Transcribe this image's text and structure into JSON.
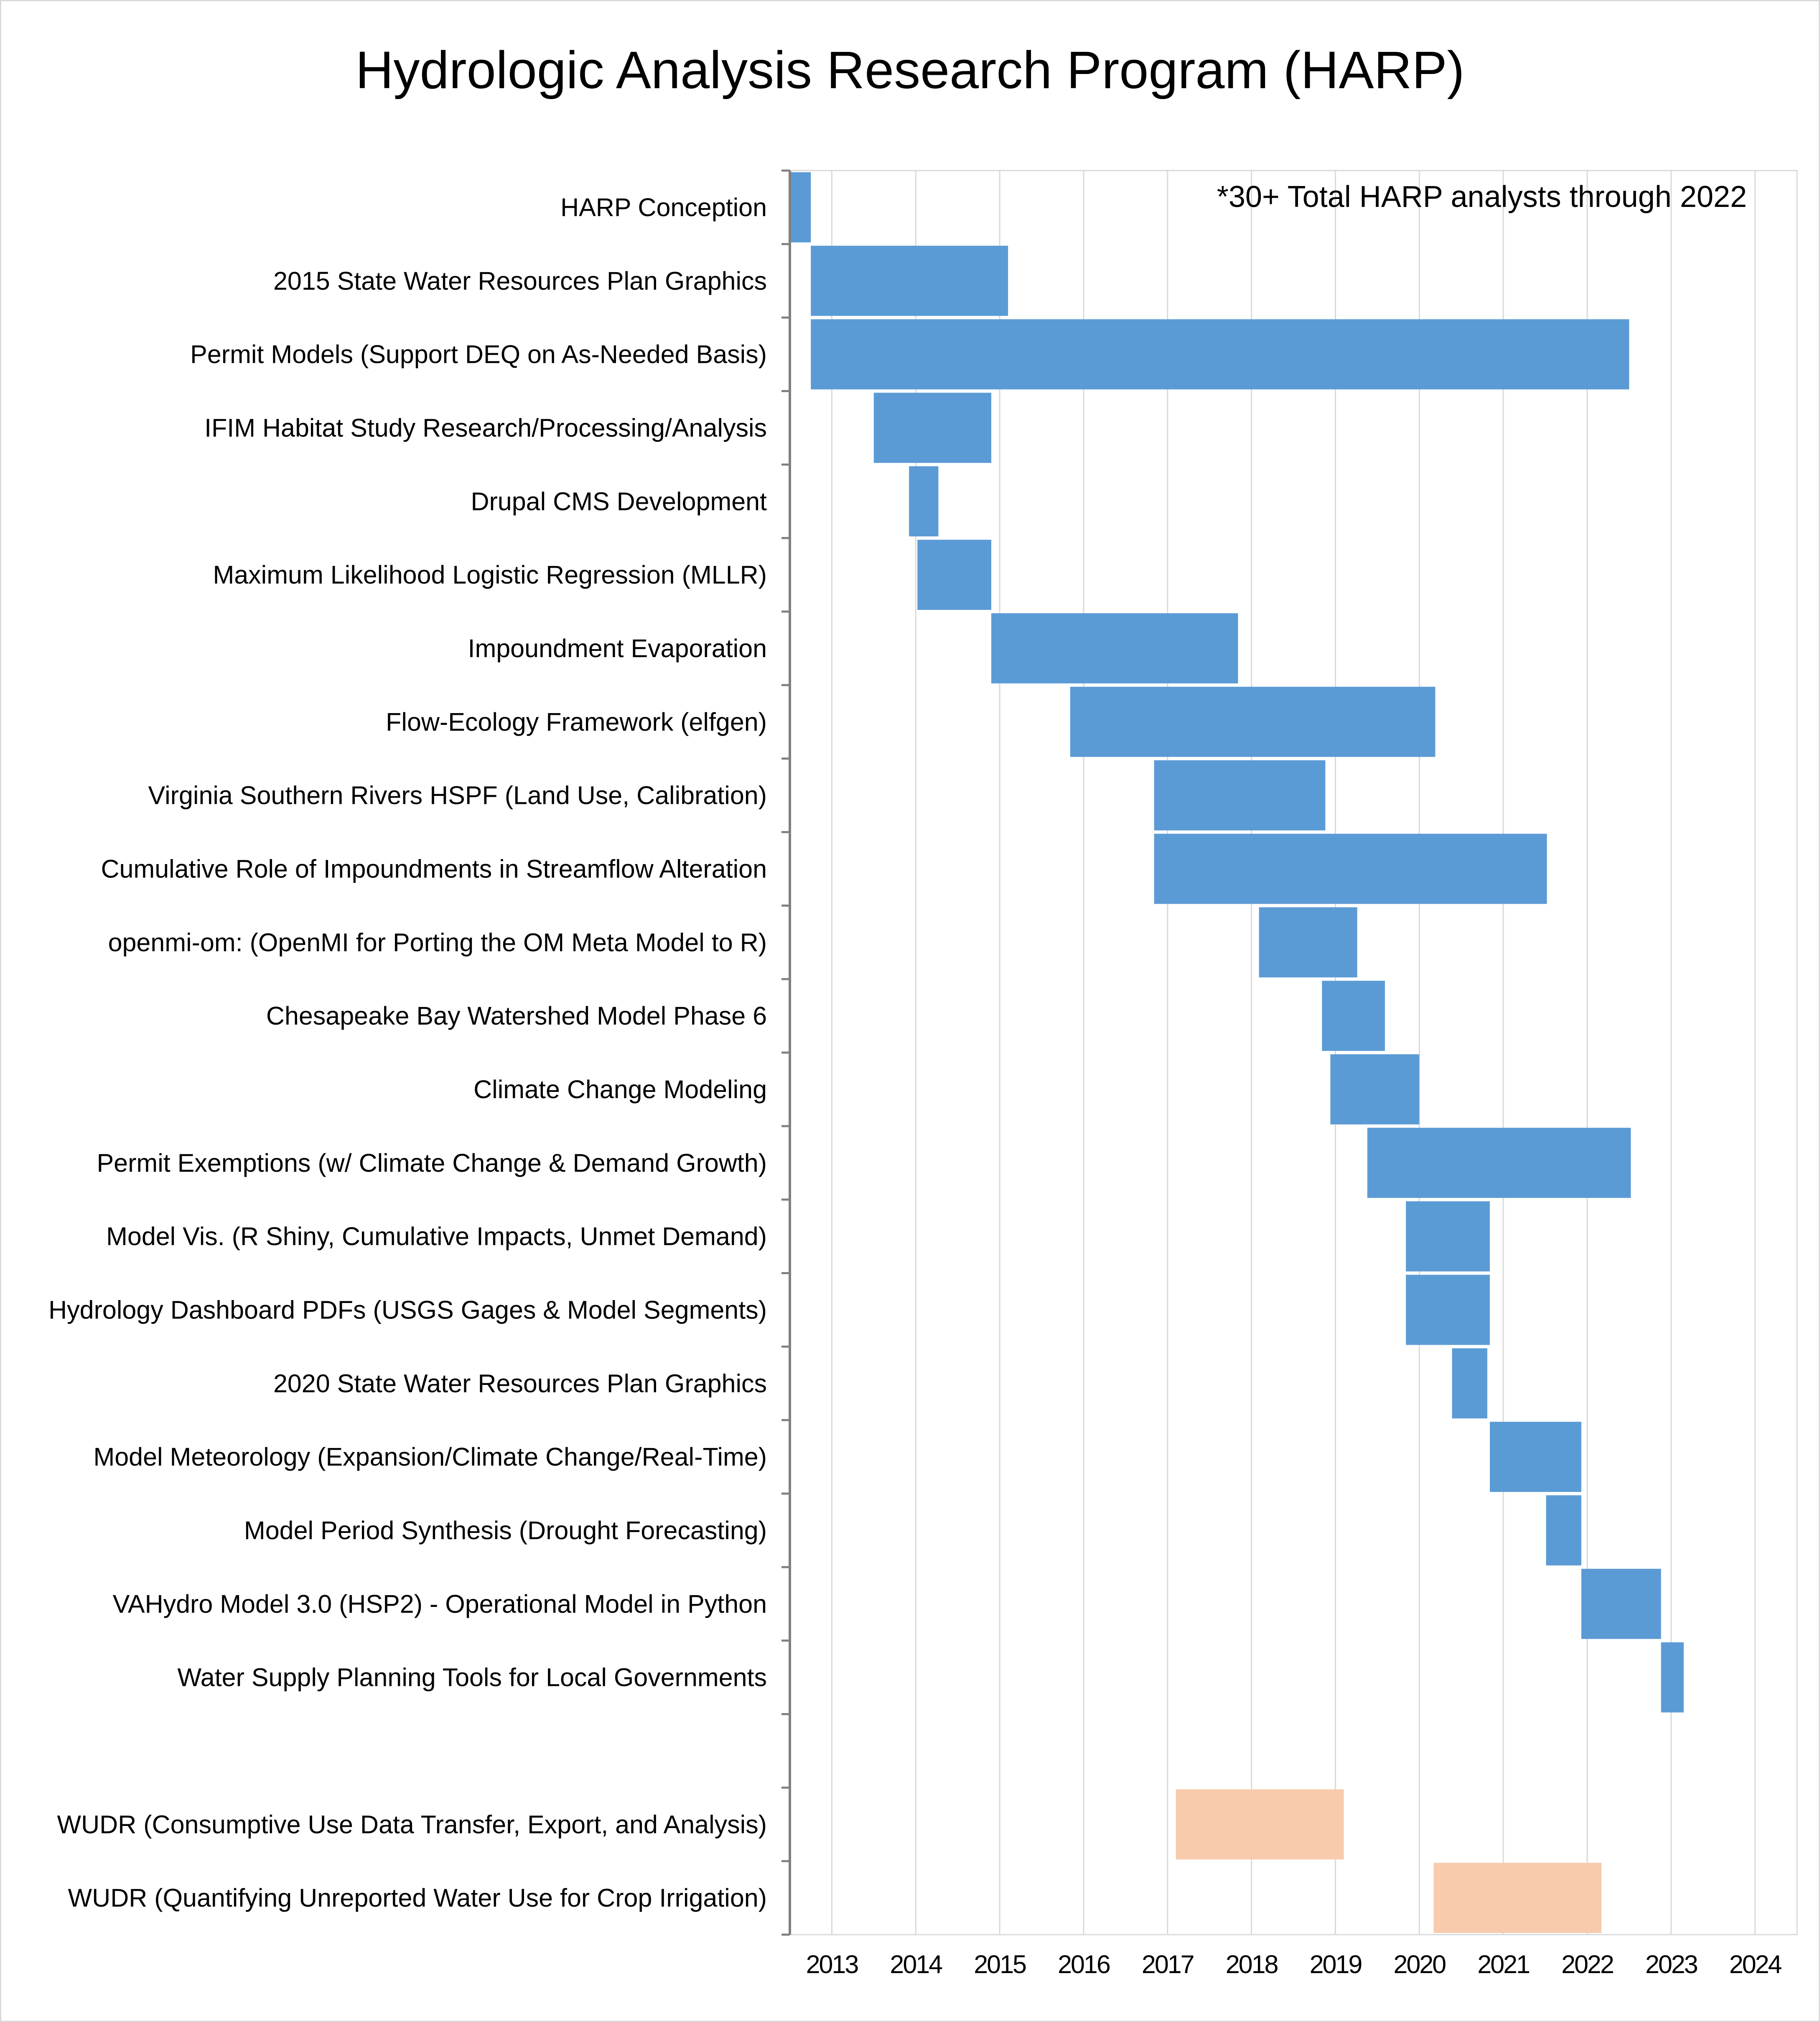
{
  "chart_data": {
    "type": "bar",
    "orientation": "horizontal-gantt",
    "title": "Hydrologic Analysis Research Program (HARP)",
    "annotation": "*30+ Total HARP analysts through 2022",
    "xlabel": "",
    "ylabel": "",
    "x_ticks": [
      "2013",
      "2014",
      "2015",
      "2016",
      "2017",
      "2018",
      "2019",
      "2020",
      "2021",
      "2022",
      "2023",
      "2024"
    ],
    "xlim": [
      2012.5,
      2024.5
    ],
    "grid": "vertical",
    "colors": {
      "primary": "#5b9bd5",
      "wudr": "#f8cbad",
      "grid": "#d9d9d9",
      "axis": "#808080"
    },
    "tasks": [
      {
        "label": "HARP Conception",
        "start": 2012.5,
        "end": 2012.75,
        "group": "primary"
      },
      {
        "label": "2015 State Water Resources Plan Graphics",
        "start": 2012.75,
        "end": 2015.1,
        "group": "primary"
      },
      {
        "label": "Permit Models (Support DEQ on As-Needed Basis)",
        "start": 2012.75,
        "end": 2022.5,
        "group": "primary"
      },
      {
        "label": "IFIM Habitat Study Research/Processing/Analysis",
        "start": 2013.5,
        "end": 2014.9,
        "group": "primary"
      },
      {
        "label": "Drupal CMS Development",
        "start": 2013.92,
        "end": 2014.27,
        "group": "primary"
      },
      {
        "label": "Maximum Likelihood Logistic Regression (MLLR)",
        "start": 2014.02,
        "end": 2014.9,
        "group": "primary"
      },
      {
        "label": "Impoundment Evaporation",
        "start": 2014.9,
        "end": 2017.84,
        "group": "primary"
      },
      {
        "label": "Flow-Ecology Framework (elfgen)",
        "start": 2015.84,
        "end": 2020.19,
        "group": "primary"
      },
      {
        "label": "Virginia Southern Rivers HSPF (Land Use, Calibration)",
        "start": 2016.84,
        "end": 2018.88,
        "group": "primary"
      },
      {
        "label": "Cumulative Role of Impoundments in Streamflow Alteration",
        "start": 2016.84,
        "end": 2021.52,
        "group": "primary"
      },
      {
        "label": "openmi-om: (OpenMI for Porting the OM Meta Model to R)",
        "start": 2018.09,
        "end": 2019.26,
        "group": "primary"
      },
      {
        "label": "Chesapeake Bay Watershed Model Phase 6",
        "start": 2018.84,
        "end": 2019.59,
        "group": "primary"
      },
      {
        "label": "Climate Change Modeling",
        "start": 2018.94,
        "end": 2020.0,
        "group": "primary"
      },
      {
        "label": "Permit Exemptions (w/ Climate Change & Demand Growth)",
        "start": 2019.38,
        "end": 2022.52,
        "group": "primary"
      },
      {
        "label": "Model Vis. (R Shiny, Cumulative Impacts, Unmet Demand)",
        "start": 2019.84,
        "end": 2020.84,
        "group": "primary"
      },
      {
        "label": "Hydrology Dashboard PDFs (USGS Gages & Model Segments)",
        "start": 2019.84,
        "end": 2020.84,
        "group": "primary"
      },
      {
        "label": "2020 State Water Resources Plan Graphics",
        "start": 2020.39,
        "end": 2020.81,
        "group": "primary"
      },
      {
        "label": "Model Meteorology (Expansion/Climate Change/Real-Time)",
        "start": 2020.84,
        "end": 2021.93,
        "group": "primary"
      },
      {
        "label": "Model Period Synthesis (Drought Forecasting)",
        "start": 2021.51,
        "end": 2021.93,
        "group": "primary"
      },
      {
        "label": "VAHydro Model 3.0 (HSP2) - Operational Model in Python",
        "start": 2021.93,
        "end": 2022.88,
        "group": "primary"
      },
      {
        "label": "Water Supply Planning Tools for Local Governments",
        "start": 2022.88,
        "end": 2023.15,
        "group": "primary"
      },
      {
        "label": "",
        "start": null,
        "end": null,
        "group": "spacer"
      },
      {
        "label": "WUDR (Consumptive Use Data Transfer, Export, and Analysis)",
        "start": 2017.1,
        "end": 2019.1,
        "group": "wudr"
      },
      {
        "label": "WUDR (Quantifying Unreported Water Use for Crop Irrigation)",
        "start": 2020.17,
        "end": 2022.17,
        "group": "wudr"
      }
    ]
  }
}
